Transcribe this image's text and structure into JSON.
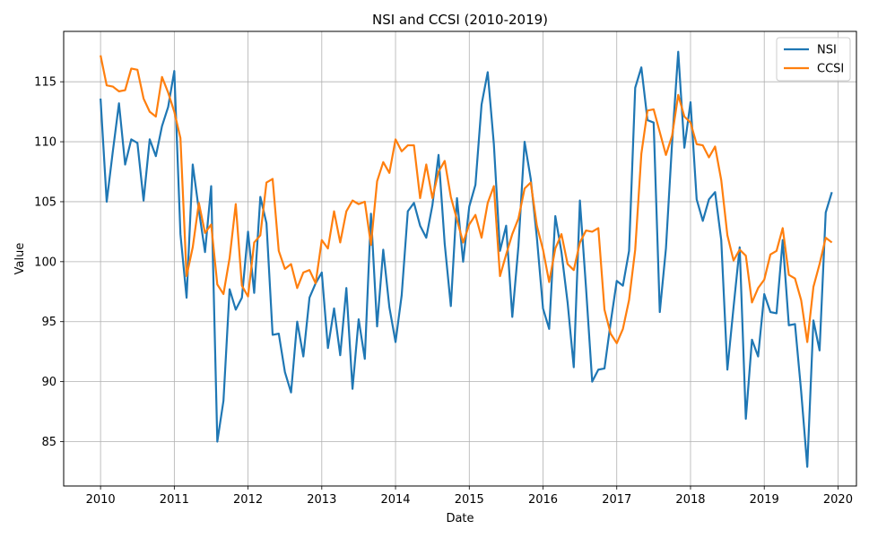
{
  "chart_data": {
    "type": "line",
    "title": "NSI and CCSI (2010-2019)",
    "xlabel": "Date",
    "ylabel": "Value",
    "x_start": "2010-01",
    "x_step": "monthly",
    "xlim": [
      2009.5,
      2020.25
    ],
    "ylim": [
      81.3,
      119.2
    ],
    "x_ticks": [
      "2010",
      "2011",
      "2012",
      "2013",
      "2014",
      "2015",
      "2016",
      "2017",
      "2018",
      "2019",
      "2020"
    ],
    "y_ticks": [
      "85",
      "90",
      "95",
      "100",
      "105",
      "110",
      "115"
    ],
    "grid": true,
    "legend_position": "top-right",
    "series": [
      {
        "name": "NSI",
        "color": "#1f77b4",
        "values": [
          113.6,
          105.0,
          109.2,
          113.2,
          108.1,
          110.2,
          109.9,
          105.1,
          110.2,
          108.8,
          111.3,
          112.9,
          115.9,
          102.3,
          97.0,
          108.1,
          104.3,
          100.8,
          106.3,
          85.0,
          88.4,
          97.7,
          96.0,
          97.0,
          102.5,
          97.4,
          105.4,
          103.2,
          93.9,
          94.0,
          90.8,
          89.1,
          95.0,
          92.1,
          97.0,
          98.2,
          99.1,
          92.8,
          96.1,
          92.2,
          97.8,
          89.4,
          95.2,
          91.9,
          104.0,
          94.6,
          101.0,
          96.2,
          93.3,
          97.2,
          104.2,
          104.9,
          103.0,
          102.0,
          104.7,
          108.9,
          101.5,
          96.3,
          105.3,
          100.0,
          104.6,
          106.4,
          113.1,
          115.8,
          109.8,
          100.9,
          103.0,
          95.4,
          101.3,
          110.0,
          106.9,
          102.0,
          96.1,
          94.4,
          103.8,
          100.8,
          96.6,
          91.2,
          105.1,
          97.8,
          90.0,
          91.0,
          91.1,
          94.9,
          98.4,
          98.0,
          100.9,
          114.5,
          116.2,
          111.8,
          111.6,
          95.8,
          101.1,
          109.9,
          117.5,
          109.5,
          113.3,
          105.2,
          103.4,
          105.2,
          105.8,
          101.8,
          91.0,
          96.2,
          101.2,
          86.9,
          93.5,
          92.1,
          97.3,
          95.8,
          95.7,
          101.8,
          94.7,
          94.8,
          89.2,
          82.9,
          95.1,
          92.6,
          104.1,
          105.8
        ]
      },
      {
        "name": "CCSI",
        "color": "#ff7f0e",
        "values": [
          117.2,
          114.7,
          114.6,
          114.2,
          114.3,
          116.1,
          116.0,
          113.6,
          112.5,
          112.1,
          115.4,
          114.1,
          112.5,
          110.3,
          98.8,
          101.2,
          104.9,
          102.4,
          103.1,
          98.1,
          97.3,
          100.3,
          104.8,
          98.0,
          97.1,
          101.6,
          102.2,
          106.6,
          106.9,
          100.9,
          99.4,
          99.8,
          97.8,
          99.1,
          99.3,
          98.2,
          101.8,
          101.1,
          104.2,
          101.6,
          104.2,
          105.1,
          104.8,
          105.0,
          101.4,
          106.7,
          108.3,
          107.4,
          110.2,
          109.2,
          109.7,
          109.7,
          105.3,
          108.1,
          105.3,
          107.5,
          108.4,
          105.4,
          103.5,
          101.6,
          103.1,
          103.9,
          102.0,
          104.9,
          106.3,
          98.8,
          100.6,
          102.3,
          103.6,
          106.1,
          106.6,
          103.0,
          101.0,
          98.3,
          101.1,
          102.3,
          99.8,
          99.3,
          101.6,
          102.6,
          102.5,
          102.8,
          96.0,
          94.0,
          93.2,
          94.4,
          96.8,
          101.0,
          109.0,
          112.6,
          112.7,
          110.8,
          108.9,
          110.5,
          113.9,
          112.1,
          111.6,
          109.8,
          109.7,
          108.7,
          109.6,
          106.8,
          102.2,
          100.1,
          101.0,
          100.5,
          96.6,
          97.8,
          98.5,
          100.6,
          100.9,
          102.8,
          98.9,
          98.6,
          96.8,
          93.3,
          97.9,
          99.8,
          102.0,
          101.6
        ]
      }
    ]
  }
}
